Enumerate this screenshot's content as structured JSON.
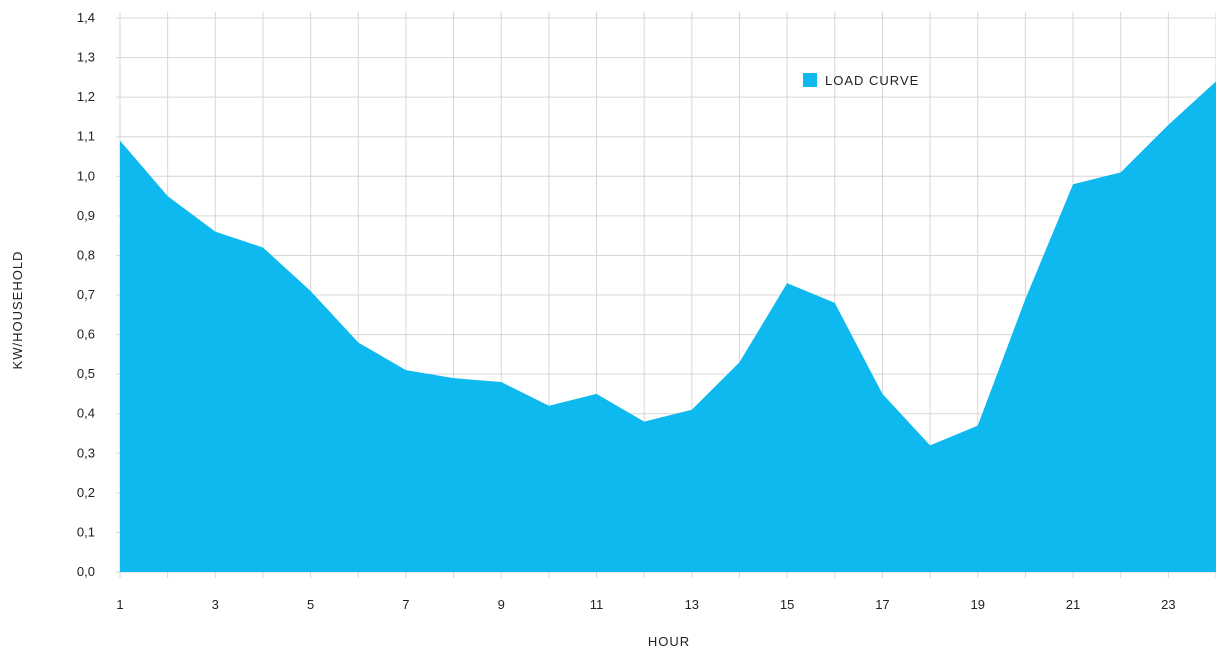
{
  "chart_data": {
    "type": "area",
    "xlabel": "HOUR",
    "ylabel": "KW/HOUSEHOLD",
    "xlim": [
      1,
      24
    ],
    "ylim": [
      0,
      1.4
    ],
    "x_ticks": [
      1,
      3,
      5,
      7,
      9,
      11,
      13,
      15,
      17,
      19,
      21,
      23
    ],
    "y_ticks": [
      "0,0",
      "0,1",
      "0,2",
      "0,3",
      "0,4",
      "0,5",
      "0,6",
      "0,7",
      "0,8",
      "0,9",
      "1,0",
      "1,1",
      "1,2",
      "1,3",
      "1,4"
    ],
    "grid": true,
    "legend_position": "top-right",
    "x": [
      1,
      2,
      3,
      4,
      5,
      6,
      7,
      8,
      9,
      10,
      11,
      12,
      13,
      14,
      15,
      16,
      17,
      18,
      19,
      20,
      21,
      22,
      23,
      24
    ],
    "series": [
      {
        "name": "LOAD CURVE",
        "color": "#0db9ee",
        "values": [
          1.09,
          0.95,
          0.86,
          0.82,
          0.71,
          0.58,
          0.51,
          0.49,
          0.48,
          0.42,
          0.45,
          0.38,
          0.41,
          0.53,
          0.73,
          0.68,
          0.45,
          0.32,
          0.37,
          0.69,
          0.98,
          1.01,
          1.13,
          1.24
        ]
      }
    ]
  }
}
